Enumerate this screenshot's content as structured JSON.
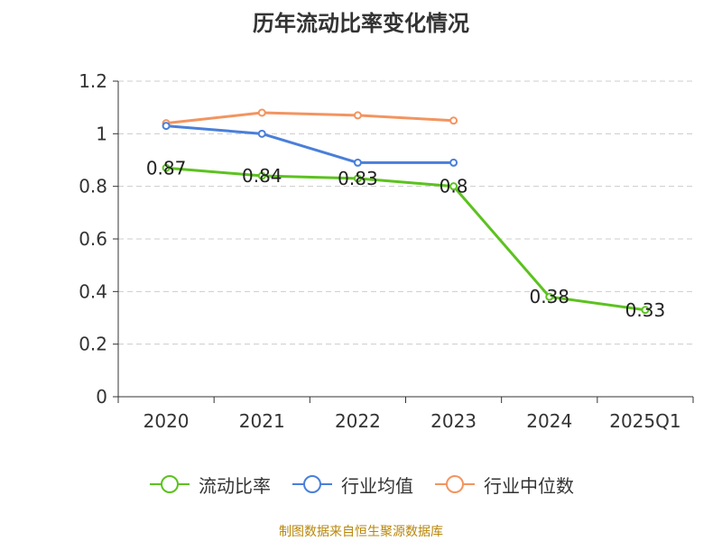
{
  "title": "历年流动比率变化情况",
  "source": "制图数据来自恒生聚源数据库",
  "chart_data": {
    "type": "line",
    "categories": [
      "2020",
      "2021",
      "2022",
      "2023",
      "2024",
      "2025Q1"
    ],
    "ylim": [
      0,
      1.2
    ],
    "yticks": [
      "0",
      "0.2",
      "0.4",
      "0.6",
      "0.8",
      "1",
      "1.2"
    ],
    "grid": true,
    "legend_position": "bottom",
    "series": [
      {
        "name": "流动比率",
        "color": "#5cc21f",
        "values": [
          0.87,
          0.84,
          0.83,
          0.8,
          0.38,
          0.33
        ],
        "labels": [
          "0.87",
          "0.84",
          "0.83",
          "0.8",
          "0.38",
          "0.33"
        ]
      },
      {
        "name": "行业均值",
        "color": "#4a7fd9",
        "values": [
          1.03,
          1.0,
          0.89,
          0.89,
          null,
          null
        ]
      },
      {
        "name": "行业中位数",
        "color": "#f39460",
        "values": [
          1.04,
          1.08,
          1.07,
          1.05,
          null,
          null
        ]
      }
    ]
  }
}
